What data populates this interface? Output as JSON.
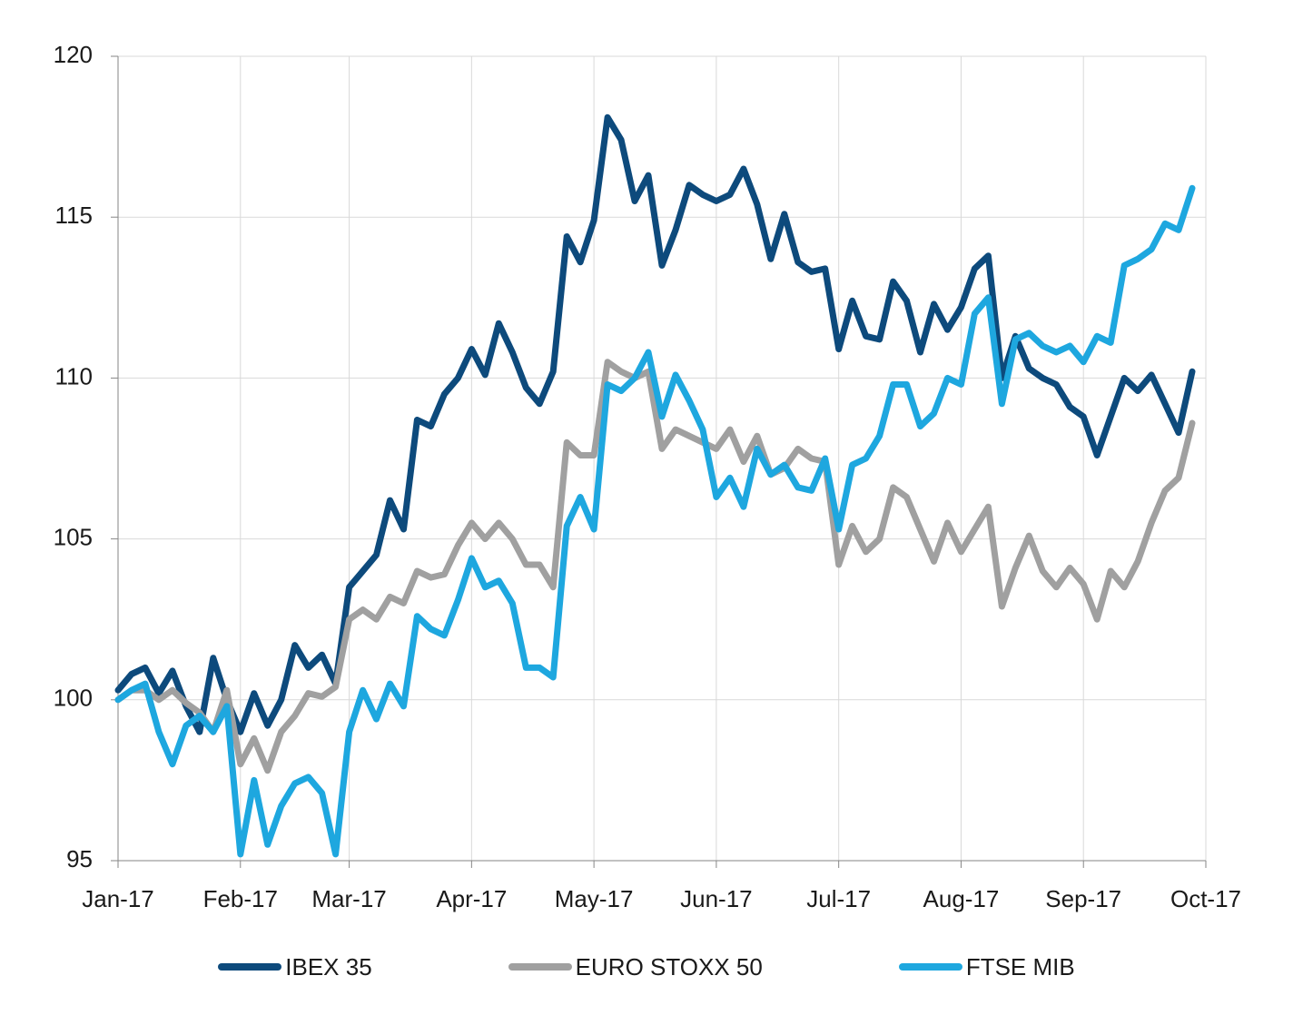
{
  "chart_data": {
    "type": "line",
    "categories": [
      "Jan-17",
      null,
      null,
      null,
      null,
      null,
      null,
      null,
      null,
      "Feb-17",
      null,
      null,
      null,
      null,
      null,
      null,
      null,
      "Mar-17",
      null,
      null,
      null,
      null,
      null,
      null,
      null,
      null,
      "Apr-17",
      null,
      null,
      null,
      null,
      null,
      null,
      null,
      null,
      "May-17",
      null,
      null,
      null,
      null,
      null,
      null,
      null,
      null,
      "Jun-17",
      null,
      null,
      null,
      null,
      null,
      null,
      null,
      null,
      "Jul-17",
      null,
      null,
      null,
      null,
      null,
      null,
      null,
      null,
      "Aug-17",
      null,
      null,
      null,
      null,
      null,
      null,
      null,
      null,
      "Sep-17",
      null,
      null,
      null,
      null,
      null,
      null,
      null,
      null,
      "Oct-17"
    ],
    "series": [
      {
        "name": "IBEX 35",
        "color": "#0d4a7c",
        "values": [
          100.3,
          100.8,
          101.0,
          100.2,
          100.9,
          99.8,
          99.0,
          101.3,
          100.0,
          99.0,
          100.2,
          99.2,
          100.0,
          101.7,
          101.0,
          101.4,
          100.5,
          103.5,
          104.0,
          104.5,
          106.2,
          105.3,
          108.7,
          108.5,
          109.5,
          110.0,
          110.9,
          110.1,
          111.7,
          110.8,
          109.7,
          109.2,
          110.2,
          114.4,
          113.6,
          114.9,
          118.1,
          117.4,
          115.5,
          116.3,
          113.5,
          114.6,
          116.0,
          115.7,
          115.5,
          115.7,
          116.5,
          115.4,
          113.7,
          115.1,
          113.6,
          113.3,
          113.4,
          110.9,
          112.4,
          111.3,
          111.2,
          113.0,
          112.4,
          110.8,
          112.3,
          111.5,
          112.2,
          113.4,
          113.8,
          110.0,
          111.3,
          110.3,
          110.0,
          109.8,
          109.1,
          108.8,
          107.6,
          108.8,
          110.0,
          109.6,
          110.1,
          109.2,
          108.3,
          110.2,
          null
        ]
      },
      {
        "name": "EURO STOXX 50",
        "color": "#a0a0a0",
        "values": [
          100.0,
          100.3,
          100.3,
          100.0,
          100.3,
          99.9,
          99.6,
          99.0,
          100.3,
          98.0,
          98.8,
          97.8,
          99.0,
          99.5,
          100.2,
          100.1,
          100.4,
          102.5,
          102.8,
          102.5,
          103.2,
          103.0,
          104.0,
          103.8,
          103.9,
          104.8,
          105.5,
          105.0,
          105.5,
          105.0,
          104.2,
          104.2,
          103.5,
          108.0,
          107.6,
          107.6,
          110.5,
          110.2,
          110.0,
          110.2,
          107.8,
          108.4,
          108.2,
          108.0,
          107.8,
          108.4,
          107.4,
          108.2,
          107.0,
          107.2,
          107.8,
          107.5,
          107.4,
          104.2,
          105.4,
          104.6,
          105.0,
          106.6,
          106.3,
          105.3,
          104.3,
          105.5,
          104.6,
          105.3,
          106.0,
          102.9,
          104.1,
          105.1,
          104.0,
          103.5,
          104.1,
          103.6,
          102.5,
          104.0,
          103.5,
          104.3,
          105.5,
          106.5,
          106.9,
          108.6,
          null
        ]
      },
      {
        "name": "FTSE MIB",
        "color": "#1ea7df",
        "values": [
          100.0,
          100.3,
          100.5,
          99.0,
          98.0,
          99.2,
          99.5,
          99.0,
          99.8,
          95.2,
          97.5,
          95.5,
          96.7,
          97.4,
          97.6,
          97.1,
          95.2,
          99.0,
          100.3,
          99.4,
          100.5,
          99.8,
          102.6,
          102.2,
          102.0,
          103.1,
          104.4,
          103.5,
          103.7,
          103.0,
          101.0,
          101.0,
          100.7,
          105.4,
          106.3,
          105.3,
          109.8,
          109.6,
          110.0,
          110.8,
          108.8,
          110.1,
          109.3,
          108.4,
          106.3,
          106.9,
          106.0,
          107.8,
          107.0,
          107.3,
          106.6,
          106.5,
          107.5,
          105.3,
          107.3,
          107.5,
          108.2,
          109.8,
          109.8,
          108.5,
          108.9,
          110.0,
          109.8,
          112.0,
          112.5,
          109.2,
          111.2,
          111.4,
          111.0,
          110.8,
          111.0,
          110.5,
          111.3,
          111.1,
          113.5,
          113.7,
          114.0,
          114.8,
          114.6,
          115.9,
          null
        ]
      }
    ],
    "ylim": [
      95,
      120
    ],
    "yticks": [
      95,
      100,
      105,
      110,
      115,
      120
    ],
    "grid": true,
    "legend": "bottom"
  }
}
